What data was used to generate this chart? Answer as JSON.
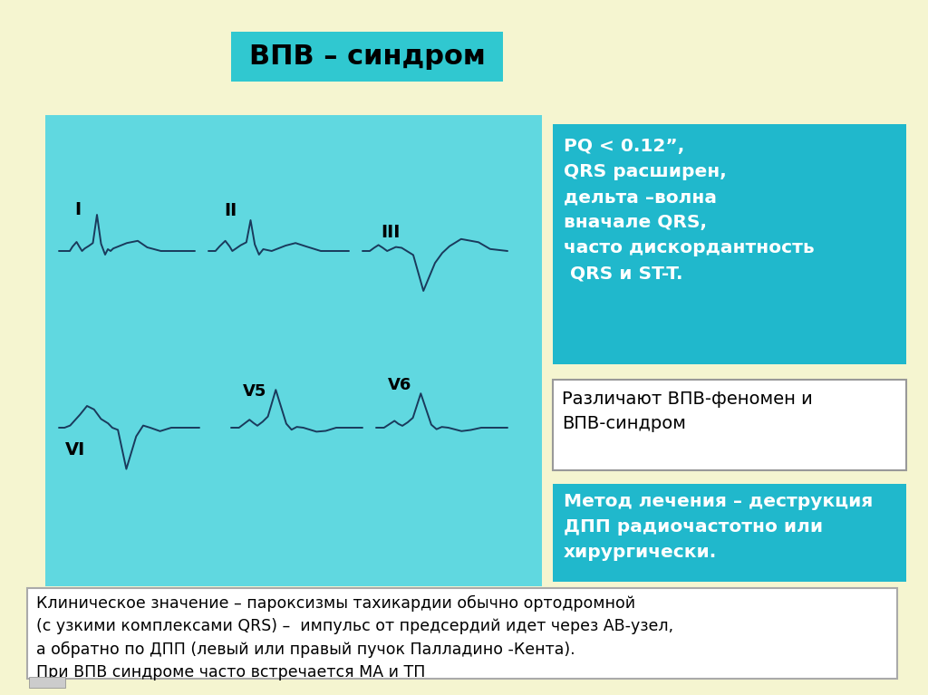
{
  "bg_color": "#f5f5d0",
  "title": "ВПВ – синдром",
  "title_bg": "#30c8d0",
  "title_color": "#000000",
  "ecg_panel_bg": "#60d8e0",
  "box1_bg": "#20b8cc",
  "box1_text": "PQ < 0.12”,\nQRS расширен,\nдельта –волна\nвначале QRS,\nчасто дискордантность\n QRS и ST-T.",
  "box1_color": "#ffffff",
  "box2_bg": "#ffffff",
  "box2_border": "#999999",
  "box2_text": "Различают ВПВ-феномен и\nВПВ-синдром",
  "box2_color": "#000000",
  "box3_bg": "#20b8cc",
  "box3_text": "Метод лечения – деструкция\nДПП радиочастотно или\nхирургически.",
  "box3_color": "#ffffff",
  "bottom_text": "Клиническое значение – пароксизмы тахикардии обычно ортодромной\n(с узкими комплексами QRS) –  импульс от предсердий идет через АВ-узел,\nа обратно по ДПП (левый или правый пучок Палладино -Кента).\nПри ВПВ синдроме часто встречается МА и ТП",
  "bottom_color": "#000000",
  "ecg_line_color": "#1a3a5c",
  "lead_label_color": "#000000"
}
